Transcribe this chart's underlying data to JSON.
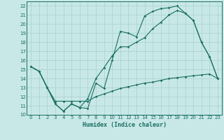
{
  "title": "",
  "xlabel": "Humidex (Indice chaleur)",
  "bg_color": "#c8e8e8",
  "grid_color": "#a8d0cc",
  "line_color": "#1a6e60",
  "xlim": [
    -0.5,
    23.5
  ],
  "ylim": [
    10,
    22.5
  ],
  "xticks": [
    0,
    1,
    2,
    3,
    4,
    5,
    6,
    7,
    8,
    9,
    10,
    11,
    12,
    13,
    14,
    15,
    16,
    17,
    18,
    19,
    20,
    21,
    22,
    23
  ],
  "yticks": [
    10,
    11,
    12,
    13,
    14,
    15,
    16,
    17,
    18,
    19,
    20,
    21,
    22
  ],
  "line1_x": [
    0,
    1,
    2,
    3,
    4,
    5,
    6,
    7,
    8,
    9,
    10,
    11,
    12,
    13,
    14,
    15,
    16,
    17,
    18,
    19,
    20,
    21,
    22,
    23
  ],
  "line1_y": [
    15.3,
    14.8,
    13.0,
    11.2,
    10.4,
    11.2,
    10.8,
    10.7,
    13.5,
    12.9,
    16.0,
    19.2,
    19.0,
    18.6,
    20.9,
    21.4,
    21.7,
    21.8,
    22.0,
    21.2,
    20.4,
    18.0,
    16.4,
    14.0
  ],
  "line2_x": [
    0,
    1,
    2,
    3,
    4,
    5,
    6,
    7,
    8,
    9,
    10,
    11,
    12,
    13,
    14,
    15,
    16,
    17,
    18,
    19,
    20,
    21,
    22,
    23
  ],
  "line2_y": [
    15.3,
    14.8,
    13.0,
    11.2,
    10.4,
    11.2,
    10.8,
    11.8,
    14.0,
    15.2,
    16.5,
    17.5,
    17.5,
    18.0,
    18.5,
    19.5,
    20.2,
    21.0,
    21.5,
    21.2,
    20.4,
    18.0,
    16.4,
    14.0
  ],
  "line3_x": [
    0,
    1,
    2,
    3,
    4,
    5,
    6,
    7,
    8,
    9,
    10,
    11,
    12,
    13,
    14,
    15,
    16,
    17,
    18,
    19,
    20,
    21,
    22,
    23
  ],
  "line3_y": [
    15.3,
    14.8,
    13.0,
    11.5,
    11.5,
    11.5,
    11.5,
    11.5,
    12.0,
    12.3,
    12.6,
    12.9,
    13.1,
    13.3,
    13.5,
    13.6,
    13.8,
    14.0,
    14.1,
    14.2,
    14.3,
    14.4,
    14.5,
    14.0
  ]
}
